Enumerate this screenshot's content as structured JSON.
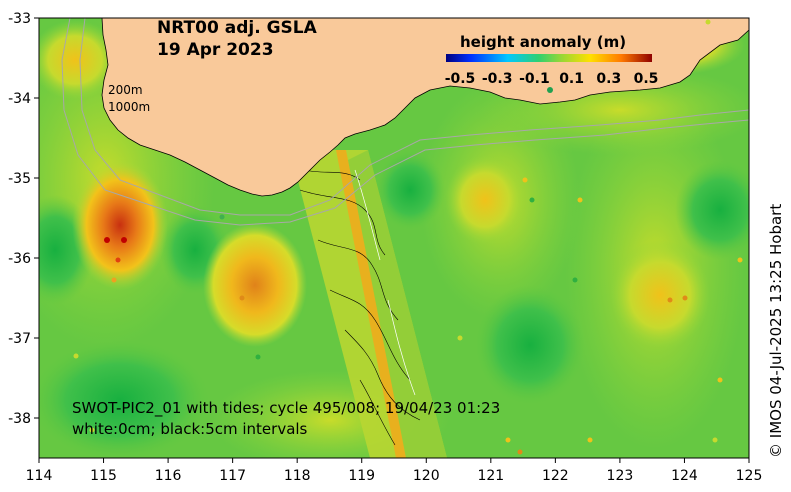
{
  "title": {
    "line1": "NRT00 adj. GSLA",
    "line2": "19 Apr 2023"
  },
  "colorbar": {
    "title": "height anomaly (m)",
    "labels": [
      "-0.5",
      "-0.3",
      "-0.1",
      "0.1",
      "0.3",
      "0.5"
    ],
    "range": [
      -0.5,
      0.5
    ]
  },
  "isobaths": {
    "shallow": "200m",
    "deep": "1000m"
  },
  "axes": {
    "x_ticks": [
      "114",
      "115",
      "116",
      "117",
      "118",
      "119",
      "120",
      "121",
      "122",
      "123",
      "124",
      "125"
    ],
    "y_ticks": [
      "-33",
      "-34",
      "-35",
      "-36",
      "-37",
      "-38"
    ],
    "lon_range": [
      114,
      125
    ],
    "lat_range": [
      -38.5,
      -33
    ]
  },
  "swath_note": {
    "line1": "SWOT-PIC2_01 with tides; cycle 495/008; 19/04/23 01:23",
    "line2": "white:0cm; black:5cm intervals"
  },
  "credit": "© IMOS 04-Jul-2025 13:25 Hobart",
  "colors": {
    "land": "#f9c99a",
    "background_anomaly": "#4fbf45"
  }
}
